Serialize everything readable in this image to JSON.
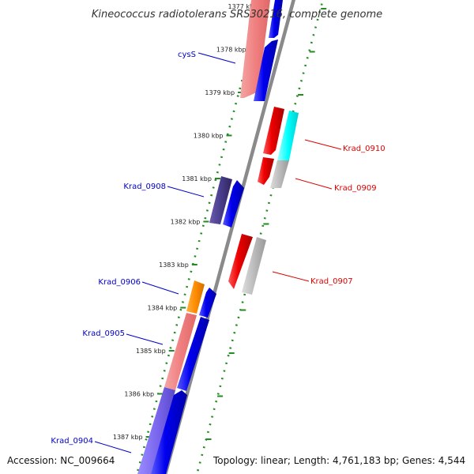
{
  "title": "Kineococcus radiotolerans SRS30216, complete genome",
  "footer": {
    "accession": "Accession: NC_009664",
    "summary": "Topology: linear; Length: 4,761,183 bp; Genes: 4,544"
  },
  "ticks": [
    {
      "kbp": 1377,
      "label": "1377 kbp",
      "faded": true
    },
    {
      "kbp": 1378,
      "label": "1378 kbp"
    },
    {
      "kbp": 1379,
      "label": "1379 kbp"
    },
    {
      "kbp": 1380,
      "label": "1380 kbp"
    },
    {
      "kbp": 1381,
      "label": "1381 kbp"
    },
    {
      "kbp": 1382,
      "label": "1382 kbp"
    },
    {
      "kbp": 1383,
      "label": "1383 kbp"
    },
    {
      "kbp": 1384,
      "label": "1384 kbp"
    },
    {
      "kbp": 1385,
      "label": "1385 kbp"
    },
    {
      "kbp": 1386,
      "label": "1386 kbp"
    },
    {
      "kbp": 1387,
      "label": "1387 kbp"
    }
  ],
  "genes_left": [
    {
      "id": "cysS",
      "label": "cysS",
      "color": "#0000cc"
    },
    {
      "id": "Krad_0908",
      "label": "Krad_0908",
      "color": "#0000cc"
    },
    {
      "id": "Krad_0906",
      "label": "Krad_0906",
      "color": "#0000cc"
    },
    {
      "id": "Krad_0905",
      "label": "Krad_0905",
      "color": "#0000cc"
    },
    {
      "id": "Krad_0904",
      "label": "Krad_0904",
      "color": "#0000cc"
    }
  ],
  "genes_right": [
    {
      "id": "Krad_0910",
      "label": "Krad_0910",
      "color": "#dd0000"
    },
    {
      "id": "Krad_0909",
      "label": "Krad_0909",
      "color": "#dd0000"
    },
    {
      "id": "Krad_0907",
      "label": "Krad_0907",
      "color": "#dd0000"
    }
  ],
  "colors": {
    "forward_strand": "#0000ee",
    "reverse_strand": "#ee0000",
    "ruler_dots": "#228b22",
    "backbone": "#888888",
    "orange_feature": "#ff8c00",
    "cyan_feature": "#00ffff",
    "pink_feature": "#f08080",
    "purple_feature": "#7b68ee",
    "dark_purple_feature": "#483d8b",
    "gray_feature": "#bbbbbb"
  }
}
